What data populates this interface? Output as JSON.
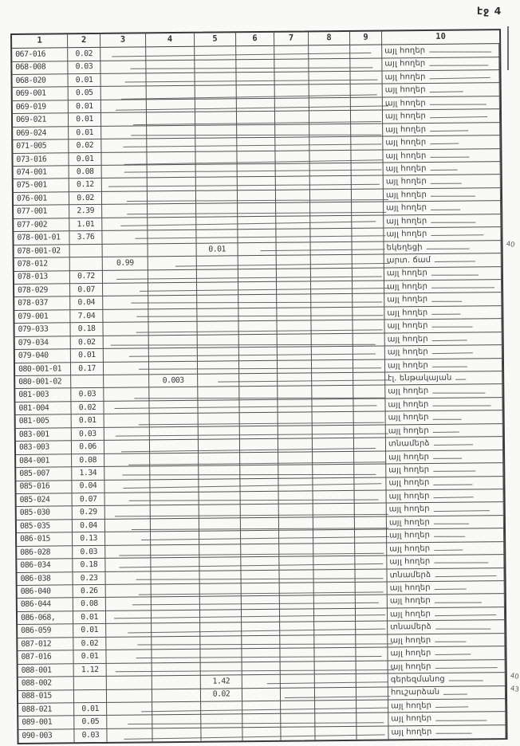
{
  "page": {
    "label": "էջ 4"
  },
  "colors": {
    "ink": "#3a3a3a",
    "paper": "#f9f9f7"
  },
  "table": {
    "headers": [
      "1",
      "2",
      "3",
      "4",
      "5",
      "6",
      "7",
      "8",
      "9",
      "10"
    ],
    "rows": [
      {
        "c1": "067-016",
        "c2": "0.02",
        "c3": "",
        "c4": "",
        "c5": "",
        "c10": "այլ հողեր",
        "note": ""
      },
      {
        "c1": "068-008",
        "c2": "0.03",
        "c3": "",
        "c4": "",
        "c5": "",
        "c10": "այլ հողեր",
        "note": ""
      },
      {
        "c1": "068-020",
        "c2": "0.01",
        "c3": "",
        "c4": "",
        "c5": "",
        "c10": "այլ հողեր",
        "note": ""
      },
      {
        "c1": "069-001",
        "c2": "0.05",
        "c3": "",
        "c4": "",
        "c5": "",
        "c10": "այլ հողեր",
        "note": ""
      },
      {
        "c1": "069-019",
        "c2": "0.01",
        "c3": "",
        "c4": "",
        "c5": "",
        "c10": "այլ հողեր",
        "note": ""
      },
      {
        "c1": "069-021",
        "c2": "0.01",
        "c3": "",
        "c4": "",
        "c5": "",
        "c10": "այլ հողեր",
        "note": ""
      },
      {
        "c1": "069-024",
        "c2": "0.01",
        "c3": "",
        "c4": "",
        "c5": "",
        "c10": "այլ հողեր",
        "note": ""
      },
      {
        "c1": "071-005",
        "c2": "0.02",
        "c3": "",
        "c4": "",
        "c5": "",
        "c10": "այլ հողեր",
        "note": ""
      },
      {
        "c1": "073-016",
        "c2": "0.01",
        "c3": "",
        "c4": "",
        "c5": "",
        "c10": "այլ հողեր",
        "note": ""
      },
      {
        "c1": "074-001",
        "c2": "0.08",
        "c3": "",
        "c4": "",
        "c5": "",
        "c10": "այլ հողեր",
        "note": ""
      },
      {
        "c1": "075-001",
        "c2": "0.12",
        "c3": "",
        "c4": "",
        "c5": "",
        "c10": "այլ հողեր",
        "note": ""
      },
      {
        "c1": "076-001",
        "c2": "0.02",
        "c3": "",
        "c4": "",
        "c5": "",
        "c10": "այլ հողեր",
        "note": ""
      },
      {
        "c1": "077-001",
        "c2": "2.39",
        "c3": "",
        "c4": "",
        "c5": "",
        "c10": "այլ հողեր",
        "note": ""
      },
      {
        "c1": "077-002",
        "c2": "1.01",
        "c3": "",
        "c4": "",
        "c5": "",
        "c10": "այլ հողեր",
        "note": ""
      },
      {
        "c1": "078-001-01",
        "c2": "3.76",
        "c3": "",
        "c4": "",
        "c5": "",
        "c10": "այլ հողեր",
        "note": ""
      },
      {
        "c1": "078-001-02",
        "c2": "",
        "c3": "",
        "c4": "",
        "c5": "0.01",
        "c10": "եկեղեցի",
        "note": "40"
      },
      {
        "c1": "078-012",
        "c2": "",
        "c3": "0.99",
        "c4": "",
        "c5": "",
        "c10": "արտ. ճամ",
        "note": ""
      },
      {
        "c1": "078-013",
        "c2": "0.72",
        "c3": "",
        "c4": "",
        "c5": "",
        "c10": "այլ հողեր",
        "note": ""
      },
      {
        "c1": "078-029",
        "c2": "0.07",
        "c3": "",
        "c4": "",
        "c5": "",
        "c10": "այլ հողեր",
        "note": ""
      },
      {
        "c1": "078-037",
        "c2": "0.04",
        "c3": "",
        "c4": "",
        "c5": "",
        "c10": "այլ հողեր",
        "note": ""
      },
      {
        "c1": "079-001",
        "c2": "7.04",
        "c3": "",
        "c4": "",
        "c5": "",
        "c10": "այլ հողեր",
        "note": ""
      },
      {
        "c1": "079-033",
        "c2": "0.18",
        "c3": "",
        "c4": "",
        "c5": "",
        "c10": "այլ հողեր",
        "note": ""
      },
      {
        "c1": "079-034",
        "c2": "0.02",
        "c3": "",
        "c4": "",
        "c5": "",
        "c10": "այլ հողեր",
        "note": ""
      },
      {
        "c1": "079-040",
        "c2": "0.01",
        "c3": "",
        "c4": "",
        "c5": "",
        "c10": "այլ հողեր",
        "note": ""
      },
      {
        "c1": "080-001-01",
        "c2": "0.17",
        "c3": "",
        "c4": "",
        "c5": "",
        "c10": "այլ հողեր",
        "note": ""
      },
      {
        "c1": "080-001-02",
        "c2": "",
        "c3": "",
        "c4": "0.003",
        "c5": "",
        "c10": "էլ. ենթակայան",
        "note": ""
      },
      {
        "c1": "081-003",
        "c2": "0.03",
        "c3": "",
        "c4": "",
        "c5": "",
        "c10": "այլ հողեր",
        "note": ""
      },
      {
        "c1": "081-004",
        "c2": "0.02",
        "c3": "",
        "c4": "",
        "c5": "",
        "c10": "այլ հողեր",
        "note": ""
      },
      {
        "c1": "081-005",
        "c2": "0.01",
        "c3": "",
        "c4": "",
        "c5": "",
        "c10": "այլ հողեր",
        "note": ""
      },
      {
        "c1": "083-001",
        "c2": "0.03",
        "c3": "",
        "c4": "",
        "c5": "",
        "c10": "այլ հողեր",
        "note": ""
      },
      {
        "c1": "083-003",
        "c2": "0.06",
        "c3": "",
        "c4": "",
        "c5": "",
        "c10": "տնամերձ",
        "note": ""
      },
      {
        "c1": "084-001",
        "c2": "0.08",
        "c3": "",
        "c4": "",
        "c5": "",
        "c10": "այլ հողեր",
        "note": ""
      },
      {
        "c1": "085-007",
        "c2": "1.34",
        "c3": "",
        "c4": "",
        "c5": "",
        "c10": "այլ հողեր",
        "note": ""
      },
      {
        "c1": "085-016",
        "c2": "0.04",
        "c3": "",
        "c4": "",
        "c5": "",
        "c10": "այլ հողեր",
        "note": ""
      },
      {
        "c1": "085-024",
        "c2": "0.07",
        "c3": "",
        "c4": "",
        "c5": "",
        "c10": "այլ հողեր",
        "note": ""
      },
      {
        "c1": "085-030",
        "c2": "0.29",
        "c3": "",
        "c4": "",
        "c5": "",
        "c10": "այլ հողեր",
        "note": ""
      },
      {
        "c1": "085-035",
        "c2": "0.04",
        "c3": "",
        "c4": "",
        "c5": "",
        "c10": "այլ հողեր",
        "note": ""
      },
      {
        "c1": "086-015",
        "c2": "0.13",
        "c3": "",
        "c4": "",
        "c5": "",
        "c10": "այլ հողեր",
        "note": ""
      },
      {
        "c1": "086-028",
        "c2": "0.03",
        "c3": "",
        "c4": "",
        "c5": "",
        "c10": "այլ հողեր",
        "note": ""
      },
      {
        "c1": "086-034",
        "c2": "0.18",
        "c3": "",
        "c4": "",
        "c5": "",
        "c10": "այլ հողեր",
        "note": ""
      },
      {
        "c1": "086-038",
        "c2": "0.23",
        "c3": "",
        "c4": "",
        "c5": "",
        "c10": "տնամերձ",
        "note": ""
      },
      {
        "c1": "086-040",
        "c2": "0.26",
        "c3": "",
        "c4": "",
        "c5": "",
        "c10": "այլ հողեր",
        "note": ""
      },
      {
        "c1": "086-044",
        "c2": "0.08",
        "c3": "",
        "c4": "",
        "c5": "",
        "c10": "այլ հողեր",
        "note": ""
      },
      {
        "c1": "086-068,",
        "c2": "0.01",
        "c3": "",
        "c4": "",
        "c5": "",
        "c10": "այլ հողեր",
        "note": ""
      },
      {
        "c1": "086-059",
        "c2": "0.01",
        "c3": "",
        "c4": "",
        "c5": "",
        "c10": "տնամերձ",
        "note": ""
      },
      {
        "c1": "087-012",
        "c2": "0.02",
        "c3": "",
        "c4": "",
        "c5": "",
        "c10": "այլ հողեր",
        "note": ""
      },
      {
        "c1": "087-016",
        "c2": "0.01",
        "c3": "",
        "c4": "",
        "c5": "",
        "c10": "այլ հողեր",
        "note": ""
      },
      {
        "c1": "088-001",
        "c2": "1.12",
        "c3": "",
        "c4": "",
        "c5": "",
        "c10": "այլ հողեր",
        "note": ""
      },
      {
        "c1": "088-002",
        "c2": "",
        "c3": "",
        "c4": "",
        "c5": "1.42",
        "c10": "գերեզմանոց",
        "note": "40"
      },
      {
        "c1": "088-015",
        "c2": "",
        "c3": "",
        "c4": "",
        "c5": "0.02",
        "c10": "հուշարձան",
        "note": "43"
      },
      {
        "c1": "088-021",
        "c2": "0.01",
        "c3": "",
        "c4": "",
        "c5": "",
        "c10": "այլ հողեր",
        "note": ""
      },
      {
        "c1": "089-001",
        "c2": "0.05",
        "c3": "",
        "c4": "",
        "c5": "",
        "c10": "այլ հողեր",
        "note": ""
      },
      {
        "c1": "090-003",
        "c2": "0.03",
        "c3": "",
        "c4": "",
        "c5": "",
        "c10": "այլ հողեր",
        "note": ""
      }
    ]
  }
}
